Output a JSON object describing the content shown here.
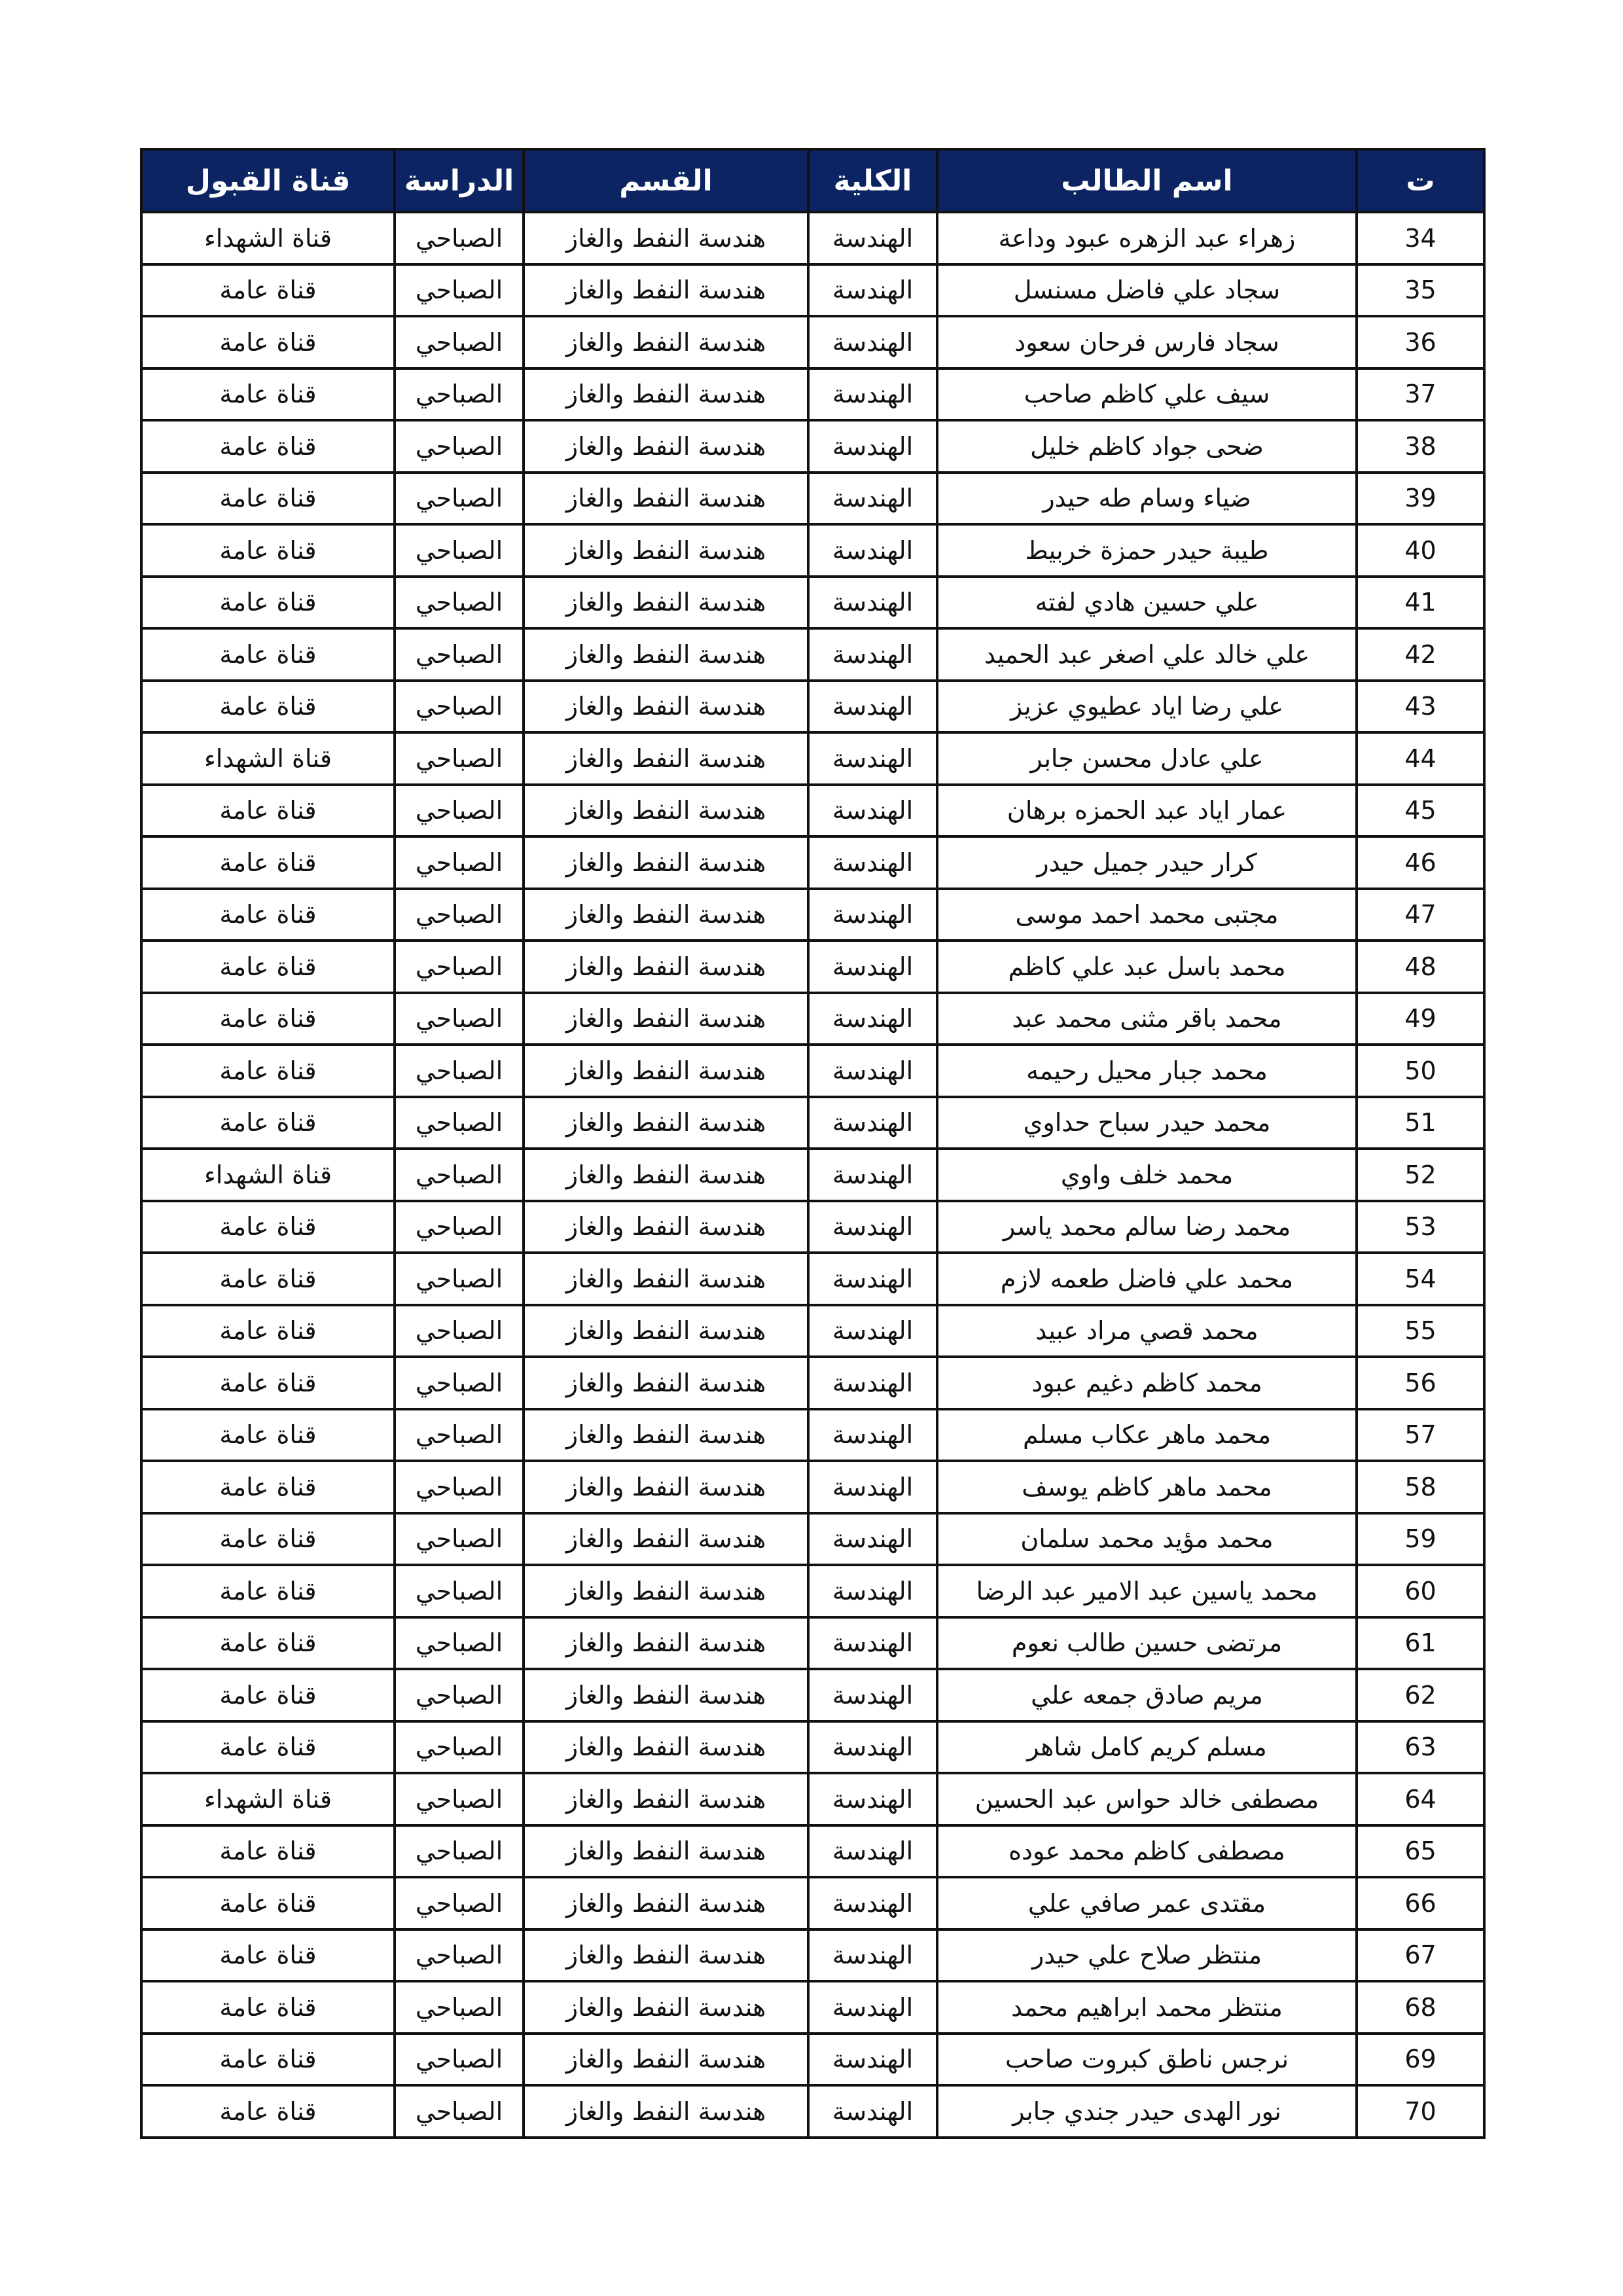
{
  "headers": {
    "num": "ت",
    "name": "اسم الطالب",
    "college": "الكلية",
    "department": "القسم",
    "study": "الدراسة",
    "channel": "قناة القبول"
  },
  "colors": {
    "header_bg": "#0c2461",
    "header_text": "#ffffff"
  },
  "rows": [
    {
      "num": "34",
      "name": "زهراء عبد الزهره عبود وداعة",
      "college": "الهندسة",
      "department": "هندسة النفط والغاز",
      "study": "الصباحي",
      "channel": "قناة الشهداء"
    },
    {
      "num": "35",
      "name": "سجاد علي فاضل مسنسل",
      "college": "الهندسة",
      "department": "هندسة النفط والغاز",
      "study": "الصباحي",
      "channel": "قناة عامة"
    },
    {
      "num": "36",
      "name": "سجاد فارس فرحان سعود",
      "college": "الهندسة",
      "department": "هندسة النفط والغاز",
      "study": "الصباحي",
      "channel": "قناة عامة"
    },
    {
      "num": "37",
      "name": "سيف علي كاظم صاحب",
      "college": "الهندسة",
      "department": "هندسة النفط والغاز",
      "study": "الصباحي",
      "channel": "قناة عامة"
    },
    {
      "num": "38",
      "name": "ضحى جواد كاظم خليل",
      "college": "الهندسة",
      "department": "هندسة النفط والغاز",
      "study": "الصباحي",
      "channel": "قناة عامة"
    },
    {
      "num": "39",
      "name": "ضياء وسام طه حيدر",
      "college": "الهندسة",
      "department": "هندسة النفط والغاز",
      "study": "الصباحي",
      "channel": "قناة عامة"
    },
    {
      "num": "40",
      "name": "طيبة حيدر حمزة خربيط",
      "college": "الهندسة",
      "department": "هندسة النفط والغاز",
      "study": "الصباحي",
      "channel": "قناة عامة"
    },
    {
      "num": "41",
      "name": "علي حسين هادي لفته",
      "college": "الهندسة",
      "department": "هندسة النفط والغاز",
      "study": "الصباحي",
      "channel": "قناة عامة"
    },
    {
      "num": "42",
      "name": "علي خالد علي اصغر عبد الحميد",
      "college": "الهندسة",
      "department": "هندسة النفط والغاز",
      "study": "الصباحي",
      "channel": "قناة عامة"
    },
    {
      "num": "43",
      "name": "علي رضا اياد عطيوي عزيز",
      "college": "الهندسة",
      "department": "هندسة النفط والغاز",
      "study": "الصباحي",
      "channel": "قناة عامة"
    },
    {
      "num": "44",
      "name": "علي عادل محسن جابر",
      "college": "الهندسة",
      "department": "هندسة النفط والغاز",
      "study": "الصباحي",
      "channel": "قناة الشهداء"
    },
    {
      "num": "45",
      "name": "عمار اياد عبد الحمزه برهان",
      "college": "الهندسة",
      "department": "هندسة النفط والغاز",
      "study": "الصباحي",
      "channel": "قناة عامة"
    },
    {
      "num": "46",
      "name": "كرار حيدر جميل حيدر",
      "college": "الهندسة",
      "department": "هندسة النفط والغاز",
      "study": "الصباحي",
      "channel": "قناة عامة"
    },
    {
      "num": "47",
      "name": "مجتبى محمد احمد موسى",
      "college": "الهندسة",
      "department": "هندسة النفط والغاز",
      "study": "الصباحي",
      "channel": "قناة عامة"
    },
    {
      "num": "48",
      "name": "محمد باسل عبد علي كاظم",
      "college": "الهندسة",
      "department": "هندسة النفط والغاز",
      "study": "الصباحي",
      "channel": "قناة عامة"
    },
    {
      "num": "49",
      "name": "محمد باقر مثنى محمد عبد",
      "college": "الهندسة",
      "department": "هندسة النفط والغاز",
      "study": "الصباحي",
      "channel": "قناة عامة"
    },
    {
      "num": "50",
      "name": "محمد جبار محيل رحيمه",
      "college": "الهندسة",
      "department": "هندسة النفط والغاز",
      "study": "الصباحي",
      "channel": "قناة عامة"
    },
    {
      "num": "51",
      "name": "محمد حيدر سباح حداوي",
      "college": "الهندسة",
      "department": "هندسة النفط والغاز",
      "study": "الصباحي",
      "channel": "قناة عامة"
    },
    {
      "num": "52",
      "name": "محمد خلف واوي",
      "college": "الهندسة",
      "department": "هندسة النفط والغاز",
      "study": "الصباحي",
      "channel": "قناة الشهداء"
    },
    {
      "num": "53",
      "name": "محمد رضا سالم محمد ياسر",
      "college": "الهندسة",
      "department": "هندسة النفط والغاز",
      "study": "الصباحي",
      "channel": "قناة عامة"
    },
    {
      "num": "54",
      "name": "محمد علي فاضل طعمه لازم",
      "college": "الهندسة",
      "department": "هندسة النفط والغاز",
      "study": "الصباحي",
      "channel": "قناة عامة"
    },
    {
      "num": "55",
      "name": "محمد قصي مراد عبيد",
      "college": "الهندسة",
      "department": "هندسة النفط والغاز",
      "study": "الصباحي",
      "channel": "قناة عامة"
    },
    {
      "num": "56",
      "name": "محمد كاظم دغيم عبود",
      "college": "الهندسة",
      "department": "هندسة النفط والغاز",
      "study": "الصباحي",
      "channel": "قناة عامة"
    },
    {
      "num": "57",
      "name": "محمد ماهر عكاب مسلم",
      "college": "الهندسة",
      "department": "هندسة النفط والغاز",
      "study": "الصباحي",
      "channel": "قناة عامة"
    },
    {
      "num": "58",
      "name": "محمد ماهر كاظم يوسف",
      "college": "الهندسة",
      "department": "هندسة النفط والغاز",
      "study": "الصباحي",
      "channel": "قناة عامة"
    },
    {
      "num": "59",
      "name": "محمد مؤيد محمد سلمان",
      "college": "الهندسة",
      "department": "هندسة النفط والغاز",
      "study": "الصباحي",
      "channel": "قناة عامة"
    },
    {
      "num": "60",
      "name": "محمد ياسين عبد الامير عبد الرضا",
      "college": "الهندسة",
      "department": "هندسة النفط والغاز",
      "study": "الصباحي",
      "channel": "قناة عامة"
    },
    {
      "num": "61",
      "name": "مرتضى حسين طالب نعوم",
      "college": "الهندسة",
      "department": "هندسة النفط والغاز",
      "study": "الصباحي",
      "channel": "قناة عامة"
    },
    {
      "num": "62",
      "name": "مريم صادق جمعه علي",
      "college": "الهندسة",
      "department": "هندسة النفط والغاز",
      "study": "الصباحي",
      "channel": "قناة عامة"
    },
    {
      "num": "63",
      "name": "مسلم كريم كامل شاهر",
      "college": "الهندسة",
      "department": "هندسة النفط والغاز",
      "study": "الصباحي",
      "channel": "قناة عامة"
    },
    {
      "num": "64",
      "name": "مصطفى خالد حواس عبد الحسين",
      "college": "الهندسة",
      "department": "هندسة النفط والغاز",
      "study": "الصباحي",
      "channel": "قناة الشهداء"
    },
    {
      "num": "65",
      "name": "مصطفى كاظم محمد عوده",
      "college": "الهندسة",
      "department": "هندسة النفط والغاز",
      "study": "الصباحي",
      "channel": "قناة عامة"
    },
    {
      "num": "66",
      "name": "مقتدى عمر صافي علي",
      "college": "الهندسة",
      "department": "هندسة النفط والغاز",
      "study": "الصباحي",
      "channel": "قناة عامة"
    },
    {
      "num": "67",
      "name": "منتظر صلاح علي حيدر",
      "college": "الهندسة",
      "department": "هندسة النفط والغاز",
      "study": "الصباحي",
      "channel": "قناة عامة"
    },
    {
      "num": "68",
      "name": "منتظر محمد ابراهيم محمد",
      "college": "الهندسة",
      "department": "هندسة النفط والغاز",
      "study": "الصباحي",
      "channel": "قناة عامة"
    },
    {
      "num": "69",
      "name": "نرجس ناطق كبروت صاحب",
      "college": "الهندسة",
      "department": "هندسة النفط والغاز",
      "study": "الصباحي",
      "channel": "قناة عامة"
    },
    {
      "num": "70",
      "name": "نور الهدى حيدر جندي جابر",
      "college": "الهندسة",
      "department": "هندسة النفط والغاز",
      "study": "الصباحي",
      "channel": "قناة عامة"
    }
  ]
}
